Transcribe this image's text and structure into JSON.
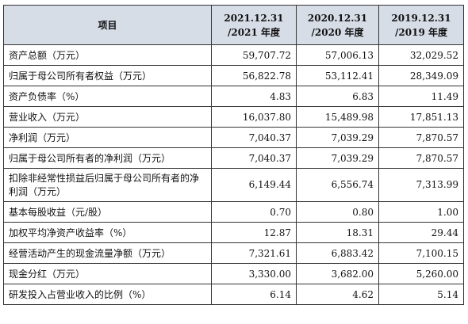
{
  "table": {
    "headers": [
      {
        "label": "项目"
      },
      {
        "line1": "2021.12.31",
        "line2": "/2021 年度"
      },
      {
        "line1": "2020.12.31",
        "line2": "/2020 年度"
      },
      {
        "line1": "2019.12.31",
        "line2": "/2019 年度"
      }
    ],
    "rows": [
      {
        "label": "资产总额（万元）",
        "values": [
          "59,707.72",
          "57,006.13",
          "32,029.52"
        ]
      },
      {
        "label": "归属于母公司所有者权益（万元）",
        "values": [
          "56,822.78",
          "53,112.41",
          "28,349.09"
        ]
      },
      {
        "label": "资产负债率（%）",
        "values": [
          "4.83",
          "6.83",
          "11.49"
        ]
      },
      {
        "label": "营业收入（万元）",
        "values": [
          "16,037.80",
          "15,489.98",
          "17,851.13"
        ]
      },
      {
        "label": "净利润（万元）",
        "values": [
          "7,040.37",
          "7,039.29",
          "7,870.57"
        ]
      },
      {
        "label": "归属于母公司所有者的净利润（万元）",
        "values": [
          "7,040.37",
          "7,039.29",
          "7,870.57"
        ]
      },
      {
        "label": "扣除非经常性损益后归属于母公司所有者的净利润（万元）",
        "values": [
          "6,149.44",
          "6,556.74",
          "7,313.99"
        ]
      },
      {
        "label": "基本每股收益（元/股）",
        "values": [
          "0.70",
          "0.80",
          "1.00"
        ]
      },
      {
        "label": "加权平均净资产收益率（%）",
        "values": [
          "12.87",
          "18.31",
          "29.44"
        ]
      },
      {
        "label": "经营活动产生的现金流量净额（万元）",
        "values": [
          "7,321.61",
          "6,883.42",
          "7,100.15"
        ]
      },
      {
        "label": "现金分红（万元）",
        "values": [
          "3,330.00",
          "3,682.00",
          "5,260.00"
        ]
      },
      {
        "label": "研发投入占营业收入的比例（%）",
        "values": [
          "6.14",
          "4.62",
          "5.14"
        ]
      }
    ]
  }
}
